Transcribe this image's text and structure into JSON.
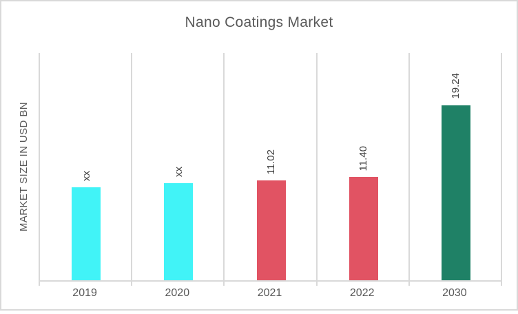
{
  "page": {
    "background": "#FFFFFF",
    "frame_border_color": "#D9D9D9"
  },
  "chart_data": {
    "type": "bar",
    "title": "Nano Coatings Market",
    "xlabel": "",
    "ylabel": "MARKET SIZE IN USD BN",
    "categories": [
      "2019",
      "2020",
      "2021",
      "2022",
      "2030"
    ],
    "values": [
      10.2,
      10.7,
      11.02,
      11.4,
      19.24
    ],
    "data_labels": [
      "xx",
      "xx",
      "11.02",
      "11.40",
      "19.24"
    ],
    "bar_colors": [
      "#41F3F7",
      "#41F3F7",
      "#E15363",
      "#E15363",
      "#1F8166"
    ],
    "ylim": [
      0,
      25
    ],
    "grid": "vertical category separator lines, no horizontal gridlines",
    "legend_position": "none",
    "data_label_orientation": "rotated 90 degrees (reads bottom to top)",
    "colors": {
      "axis_line": "#D9D9D9",
      "title_text": "#595959",
      "axis_tick_text": "#595959",
      "y_title_text": "#595959",
      "data_label_text": "#404040",
      "cyan_bar": "#41F3F7",
      "red_bar": "#E15363",
      "green_bar": "#1F8166"
    }
  }
}
